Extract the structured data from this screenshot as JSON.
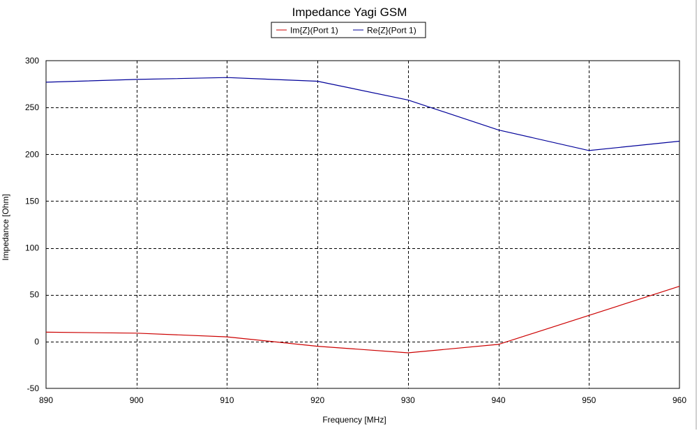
{
  "chart_data": {
    "type": "line",
    "title": "Impedance Yagi GSM",
    "xlabel": "Frequency [MHz]",
    "ylabel": "Impedance [Ohm]",
    "xlim": [
      890,
      960
    ],
    "ylim": [
      -50,
      300
    ],
    "x_ticks": [
      890,
      900,
      910,
      920,
      930,
      940,
      950,
      960
    ],
    "y_ticks": [
      -50,
      0,
      50,
      100,
      150,
      200,
      250,
      300
    ],
    "grid": true,
    "legend_position": "top-center",
    "x": [
      890,
      900,
      910,
      920,
      930,
      940,
      950,
      960
    ],
    "series": [
      {
        "name": "Im{Z}(Port 1)",
        "color": "#cc0000",
        "values": [
          10,
          9,
          5,
          -5,
          -12,
          -3,
          28,
          59
        ]
      },
      {
        "name": "Re{Z}(Port 1)",
        "color": "#000099",
        "values": [
          277,
          280,
          282,
          278,
          258,
          226,
          204,
          214
        ]
      }
    ]
  }
}
